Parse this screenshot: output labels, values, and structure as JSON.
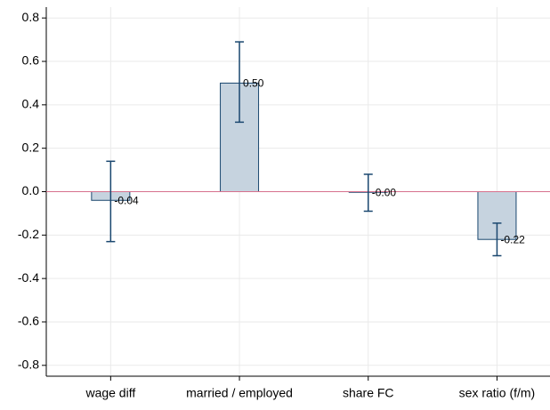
{
  "chart_data": {
    "type": "bar",
    "categories": [
      "wage diff",
      "married / employed",
      "share FC",
      "sex ratio (f/m)"
    ],
    "values": [
      -0.04,
      0.5,
      -0.003,
      -0.22
    ],
    "value_labels": [
      "-0.04",
      "0.50",
      "-0.00",
      "-0.22"
    ],
    "lower": [
      -0.23,
      0.32,
      -0.09,
      -0.295
    ],
    "upper": [
      0.14,
      0.69,
      0.08,
      -0.145
    ],
    "color": "#c6d3df",
    "edge_color": "#1a476f",
    "reference_line_color": "#d7718d",
    "ylim": [
      -0.85,
      0.85
    ],
    "yticks": [
      -0.8,
      -0.6,
      -0.4,
      -0.2,
      {
        "value": 0,
        "label": "0.0"
      },
      0.2,
      0.4,
      0.6,
      0.8
    ],
    "grid": true
  }
}
